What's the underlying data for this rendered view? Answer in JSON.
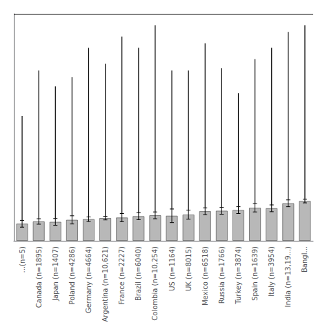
{
  "chart_data": {
    "type": "bar",
    "categories": [
      "...(n=5)",
      "Canada (n=1895)",
      "Japan (n=1407)",
      "Poland (n=4286)",
      "Germany (n=4664)",
      "Argentina (n=10,621)",
      "France (n=2227)",
      "Brazil (n=6040)",
      "Colombia (n=10,254)",
      "US (n=1164)",
      "UK (n=8015)",
      "Mexico (n=6518)",
      "Russia (n=1766)",
      "Turkey (n=3874)",
      "Spain (n=1639)",
      "Italy (n=3954)",
      "India (n=13,19...)",
      "Bangl..."
    ],
    "values": [
      7.5,
      8.5,
      8.3,
      9.2,
      9.5,
      10.0,
      10.2,
      10.8,
      11.2,
      11.0,
      11.5,
      13.0,
      13.2,
      13.5,
      14.5,
      14.3,
      16.5,
      17.5
    ],
    "errors_low": [
      1.5,
      1.2,
      1.5,
      1.8,
      1.0,
      0.8,
      1.8,
      1.5,
      1.5,
      3.0,
      2.0,
      1.5,
      1.5,
      1.5,
      1.8,
      1.5,
      1.5,
      0.8
    ],
    "errors_high": [
      1.5,
      1.2,
      1.5,
      1.8,
      1.0,
      0.8,
      1.8,
      1.5,
      1.5,
      3.0,
      2.0,
      1.5,
      1.5,
      1.5,
      1.8,
      1.5,
      1.5,
      0.8
    ],
    "ci_upper": [
      55,
      75,
      68,
      72,
      85,
      78,
      90,
      85,
      95,
      75,
      75,
      87,
      76,
      65,
      80,
      85,
      92,
      95
    ],
    "color": "#b8b8b8",
    "ylim": [
      0,
      100
    ],
    "tick_labels": "x",
    "grid": false
  }
}
